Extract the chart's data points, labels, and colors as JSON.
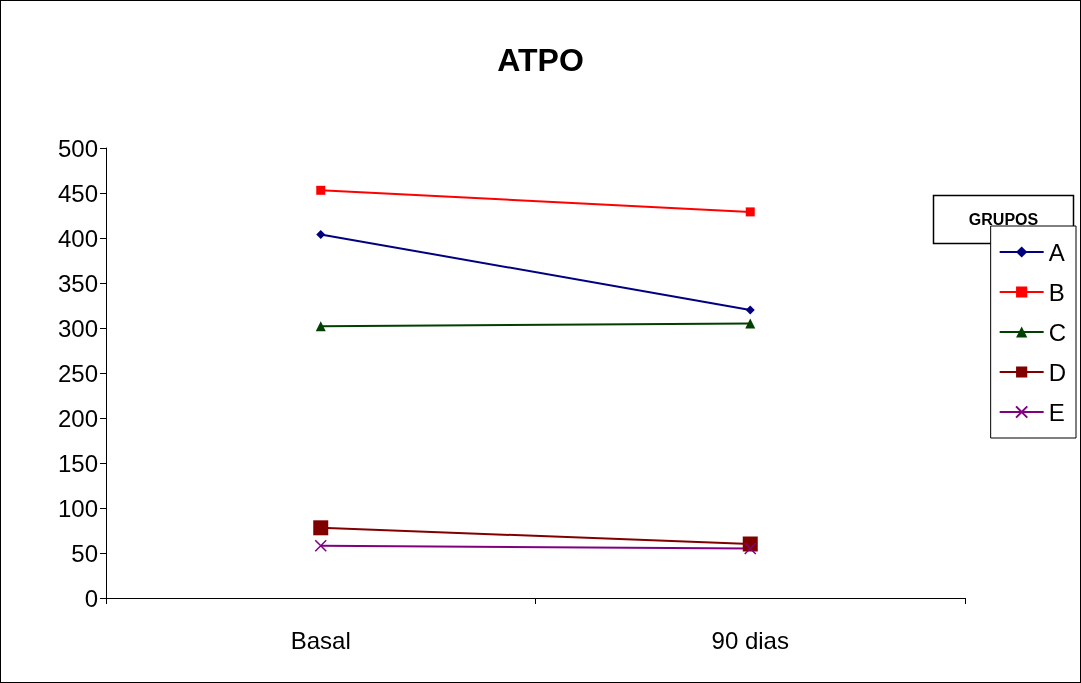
{
  "chart_data": {
    "type": "line",
    "title": "ATPO",
    "categories": [
      "Basal",
      "90 dias"
    ],
    "series": [
      {
        "name": "A",
        "color": "#000080",
        "marker": "diamond",
        "values": [
          404,
          320
        ]
      },
      {
        "name": "B",
        "color": "#ff0000",
        "marker": "square",
        "values": [
          453,
          429
        ]
      },
      {
        "name": "C",
        "color": "#004000",
        "marker": "triangle",
        "values": [
          302,
          305
        ]
      },
      {
        "name": "D",
        "color": "#800000",
        "marker": "square",
        "values": [
          78,
          60
        ]
      },
      {
        "name": "E",
        "color": "#800080",
        "marker": "cross",
        "values": [
          58,
          55
        ]
      }
    ],
    "ylim": [
      0,
      500
    ],
    "yticks": [
      0,
      50,
      100,
      150,
      200,
      250,
      300,
      350,
      400,
      450,
      500
    ],
    "grid": false,
    "legend": "right",
    "legend_title": "GRUPOS",
    "line_style": "solid"
  }
}
